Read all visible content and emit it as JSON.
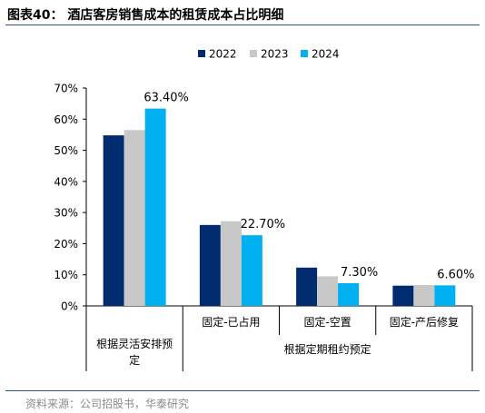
{
  "title": "图表40： 酒店客房销售成本的租赁成本占比明细",
  "source": "资料来源：公司招股书，华泰研究",
  "chart_data": {
    "type": "bar",
    "categories": [
      "",
      "固定-已占用",
      "固定-空置",
      "固定-产后修复"
    ],
    "groups": [
      {
        "label": "根据灵活安排预定",
        "span": [
          0,
          0
        ]
      },
      {
        "label": "根据定期租约预定",
        "span": [
          1,
          3
        ]
      }
    ],
    "series": [
      {
        "name": "2022",
        "color": "#002b6f",
        "values": [
          54.8,
          26.0,
          12.3,
          6.5
        ]
      },
      {
        "name": "2023",
        "color": "#c8c8c8",
        "values": [
          56.5,
          27.2,
          9.5,
          6.7
        ]
      },
      {
        "name": "2024",
        "color": "#00b0f0",
        "values": [
          63.4,
          22.7,
          7.3,
          6.6
        ]
      }
    ],
    "data_labels": [
      {
        "series": 2,
        "index": 0,
        "text": "63.40%"
      },
      {
        "series": 2,
        "index": 1,
        "text": "22.70%"
      },
      {
        "series": 2,
        "index": 2,
        "text": "7.30%"
      },
      {
        "series": 2,
        "index": 3,
        "text": "6.60%"
      }
    ],
    "ylim": [
      0,
      70
    ],
    "yticks": [
      0,
      10,
      20,
      30,
      40,
      50,
      60,
      70
    ],
    "ytick_format": "percent",
    "legend_position": "top-center",
    "grid": false
  }
}
